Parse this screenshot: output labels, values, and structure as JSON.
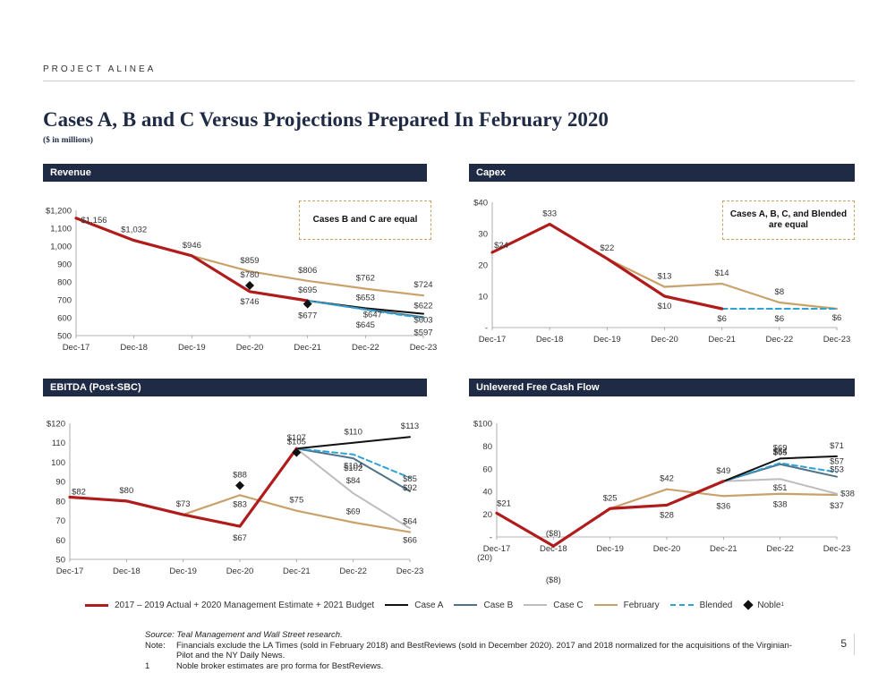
{
  "header": {
    "project": "PROJECT ALINEA"
  },
  "title": "Cases A, B and C Versus Projections Prepared In February 2020",
  "subtitle": "($ in millions)",
  "colors": {
    "actual": "#b01c1c",
    "case_a": "#111111",
    "case_b": "#4f7288",
    "case_c": "#bdbdbd",
    "february": "#c9a26b",
    "blended": "#2ea3d3",
    "noble": "#111111",
    "navy": "#1f2a44"
  },
  "legend": {
    "actual": "2017 – 2019 Actual + 2020 Management Estimate + 2021 Budget",
    "case_a": "Case A",
    "case_b": "Case B",
    "case_c": "Case C",
    "february": "February",
    "blended": "Blended",
    "noble": "Noble",
    "noble_sup": "1"
  },
  "footnotes": {
    "source": "Source: Teal Management and Wall Street research.",
    "note_key": "Note:",
    "note_text": "Financials exclude the LA Times (sold in February 2018) and BestReviews (sold in December 2020). 2017 and 2018 normalized for the acquisitions of the Virginian-Pilot and the NY Daily News.",
    "fn1_key": "1",
    "fn1_text": "Noble broker estimates are pro forma for BestReviews."
  },
  "page_number": "5",
  "chart_data": [
    {
      "id": "revenue",
      "type": "line",
      "title": "Revenue",
      "note": "Cases B and C are equal",
      "categories": [
        "Dec-17",
        "Dec-18",
        "Dec-19",
        "Dec-20",
        "Dec-21",
        "Dec-22",
        "Dec-23"
      ],
      "ylim": [
        500,
        1200
      ],
      "yticks": [
        500,
        600,
        700,
        800,
        900,
        1000,
        1100,
        1200
      ],
      "ytick_labels": [
        "500",
        "600",
        "700",
        "800",
        "900",
        "1,000",
        "1,100",
        "$1,200"
      ],
      "series": [
        {
          "key": "february",
          "values": [
            null,
            null,
            946,
            859,
            806,
            762,
            724
          ]
        },
        {
          "key": "case_a",
          "values": [
            null,
            null,
            null,
            null,
            695,
            653,
            622
          ]
        },
        {
          "key": "case_b",
          "values": [
            null,
            null,
            null,
            null,
            695,
            647,
            603
          ]
        },
        {
          "key": "blended",
          "values": [
            null,
            null,
            null,
            null,
            695,
            645,
            597
          ]
        },
        {
          "key": "actual",
          "values": [
            1156,
            1032,
            946,
            746,
            695,
            null,
            null
          ]
        },
        {
          "key": "noble",
          "values": [
            null,
            null,
            null,
            780,
            677,
            null,
            null
          ]
        }
      ],
      "labels": [
        {
          "i": 0,
          "v": 1156,
          "text": "$1,156"
        },
        {
          "i": 1,
          "v": 1032,
          "text": "$1,032"
        },
        {
          "i": 2,
          "v": 946,
          "text": "$946"
        },
        {
          "i": 3,
          "v": 859,
          "text": "$859"
        },
        {
          "i": 3,
          "v": 780,
          "text": "$780"
        },
        {
          "i": 3,
          "v": 746,
          "text": "$746"
        },
        {
          "i": 4,
          "v": 806,
          "text": "$806"
        },
        {
          "i": 4,
          "v": 695,
          "text": "$695"
        },
        {
          "i": 4,
          "v": 677,
          "text": "$677"
        },
        {
          "i": 5,
          "v": 762,
          "text": "$762"
        },
        {
          "i": 5,
          "v": 653,
          "text": "$653"
        },
        {
          "i": 5,
          "v": 647,
          "text": "$647"
        },
        {
          "i": 5,
          "v": 645,
          "text": "$645"
        },
        {
          "i": 6,
          "v": 724,
          "text": "$724"
        },
        {
          "i": 6,
          "v": 622,
          "text": "$622"
        },
        {
          "i": 6,
          "v": 603,
          "text": "$603"
        },
        {
          "i": 6,
          "v": 597,
          "text": "$597"
        }
      ]
    },
    {
      "id": "capex",
      "type": "line",
      "title": "Capex",
      "note": "Cases A, B, C, and Blended are equal",
      "categories": [
        "Dec-17",
        "Dec-18",
        "Dec-19",
        "Dec-20",
        "Dec-21",
        "Dec-22",
        "Dec-23"
      ],
      "ylim": [
        0,
        40
      ],
      "yticks": [
        0,
        10,
        20,
        30,
        40
      ],
      "ytick_labels": [
        "-",
        "10",
        "20",
        "30",
        "$40"
      ],
      "series": [
        {
          "key": "february",
          "values": [
            null,
            null,
            22,
            13,
            14,
            8,
            6
          ]
        },
        {
          "key": "blended",
          "values": [
            null,
            null,
            null,
            null,
            6,
            6,
            6
          ]
        },
        {
          "key": "actual",
          "values": [
            24,
            33,
            22,
            10,
            6,
            null,
            null
          ]
        }
      ],
      "labels": [
        {
          "i": 0,
          "v": 24,
          "text": "$24"
        },
        {
          "i": 1,
          "v": 33,
          "text": "$33"
        },
        {
          "i": 2,
          "v": 22,
          "text": "$22"
        },
        {
          "i": 3,
          "v": 13,
          "text": "$13"
        },
        {
          "i": 3,
          "v": 10,
          "text": "$10"
        },
        {
          "i": 4,
          "v": 14,
          "text": "$14"
        },
        {
          "i": 4,
          "v": 6,
          "text": "$6"
        },
        {
          "i": 5,
          "v": 8,
          "text": "$8"
        },
        {
          "i": 5,
          "v": 6,
          "text": "$6"
        },
        {
          "i": 6,
          "v": 6,
          "text": "$6"
        }
      ]
    },
    {
      "id": "ebitda",
      "type": "line",
      "title": "EBITDA (Post-SBC)",
      "categories": [
        "Dec-17",
        "Dec-18",
        "Dec-19",
        "Dec-20",
        "Dec-21",
        "Dec-22",
        "Dec-23"
      ],
      "ylim": [
        50,
        120
      ],
      "yticks": [
        50,
        60,
        70,
        80,
        90,
        100,
        110,
        120
      ],
      "ytick_labels": [
        "50",
        "60",
        "70",
        "80",
        "90",
        "100",
        "110",
        "$120"
      ],
      "series": [
        {
          "key": "february",
          "values": [
            null,
            null,
            73,
            83,
            75,
            69,
            64
          ]
        },
        {
          "key": "case_c",
          "values": [
            null,
            null,
            null,
            null,
            107,
            84,
            66
          ]
        },
        {
          "key": "case_b",
          "values": [
            null,
            null,
            null,
            null,
            107,
            102,
            85
          ]
        },
        {
          "key": "blended",
          "values": [
            null,
            null,
            null,
            null,
            107,
            104,
            92
          ]
        },
        {
          "key": "case_a",
          "values": [
            null,
            null,
            null,
            null,
            107,
            110,
            113
          ]
        },
        {
          "key": "actual",
          "values": [
            82,
            80,
            73,
            67,
            107,
            null,
            null
          ]
        },
        {
          "key": "noble",
          "values": [
            null,
            null,
            null,
            88,
            105,
            null,
            null
          ]
        }
      ],
      "labels": [
        {
          "i": 0,
          "v": 82,
          "text": "$82"
        },
        {
          "i": 1,
          "v": 80,
          "text": "$80"
        },
        {
          "i": 2,
          "v": 73,
          "text": "$73"
        },
        {
          "i": 3,
          "v": 88,
          "text": "$88"
        },
        {
          "i": 3,
          "v": 83,
          "text": "$83"
        },
        {
          "i": 3,
          "v": 67,
          "text": "$67"
        },
        {
          "i": 4,
          "v": 107,
          "text": "$107"
        },
        {
          "i": 4,
          "v": 105,
          "text": "$105"
        },
        {
          "i": 4,
          "v": 75,
          "text": "$75"
        },
        {
          "i": 5,
          "v": 110,
          "text": "$110"
        },
        {
          "i": 5,
          "v": 104,
          "text": "$104"
        },
        {
          "i": 5,
          "v": 102,
          "text": "$102"
        },
        {
          "i": 5,
          "v": 84,
          "text": "$84"
        },
        {
          "i": 5,
          "v": 69,
          "text": "$69"
        },
        {
          "i": 6,
          "v": 113,
          "text": "$113"
        },
        {
          "i": 6,
          "v": 92,
          "text": "$92"
        },
        {
          "i": 6,
          "v": 85,
          "text": "$85"
        },
        {
          "i": 6,
          "v": 66,
          "text": "$66"
        },
        {
          "i": 6,
          "v": 64,
          "text": "$64"
        }
      ]
    },
    {
      "id": "ufcf",
      "type": "line",
      "title": "Unlevered Free Cash Flow",
      "categories": [
        "Dec-17",
        "Dec-18",
        "Dec-19",
        "Dec-20",
        "Dec-21",
        "Dec-22",
        "Dec-23"
      ],
      "ylim": [
        0,
        100
      ],
      "yticks": [
        0,
        20,
        40,
        60,
        80,
        100
      ],
      "ytick_labels": [
        "-",
        "20",
        "40",
        "60",
        "80",
        "$100"
      ],
      "extra_tick_label": "(20)",
      "series": [
        {
          "key": "february",
          "values": [
            null,
            null,
            25,
            42,
            36,
            38,
            37
          ]
        },
        {
          "key": "case_c",
          "values": [
            null,
            null,
            null,
            null,
            49,
            51,
            38
          ]
        },
        {
          "key": "case_b",
          "values": [
            null,
            null,
            null,
            null,
            49,
            64,
            53
          ]
        },
        {
          "key": "blended",
          "values": [
            null,
            null,
            null,
            null,
            49,
            65,
            57
          ]
        },
        {
          "key": "case_a",
          "values": [
            null,
            null,
            null,
            null,
            49,
            69,
            71
          ]
        },
        {
          "key": "actual",
          "values": [
            21,
            -8,
            25,
            28,
            49,
            null,
            null
          ]
        }
      ],
      "labels": [
        {
          "i": 0,
          "v": 21,
          "text": "$21"
        },
        {
          "i": 1,
          "v": -8,
          "text": "($8)"
        },
        {
          "i": 1,
          "v": -8,
          "text": "($8)"
        },
        {
          "i": 2,
          "v": 25,
          "text": "$25"
        },
        {
          "i": 3,
          "v": 42,
          "text": "$42"
        },
        {
          "i": 3,
          "v": 28,
          "text": "$28"
        },
        {
          "i": 4,
          "v": 49,
          "text": "$49"
        },
        {
          "i": 4,
          "v": 36,
          "text": "$36"
        },
        {
          "i": 5,
          "v": 69,
          "text": "$69"
        },
        {
          "i": 5,
          "v": 65,
          "text": "$65"
        },
        {
          "i": 5,
          "v": 64,
          "text": "$64"
        },
        {
          "i": 5,
          "v": 51,
          "text": "$51"
        },
        {
          "i": 5,
          "v": 38,
          "text": "$38"
        },
        {
          "i": 6,
          "v": 71,
          "text": "$71"
        },
        {
          "i": 6,
          "v": 57,
          "text": "$57"
        },
        {
          "i": 6,
          "v": 53,
          "text": "$53"
        },
        {
          "i": 6,
          "v": 38,
          "text": "$38"
        },
        {
          "i": 6,
          "v": 37,
          "text": "$37"
        }
      ]
    }
  ]
}
